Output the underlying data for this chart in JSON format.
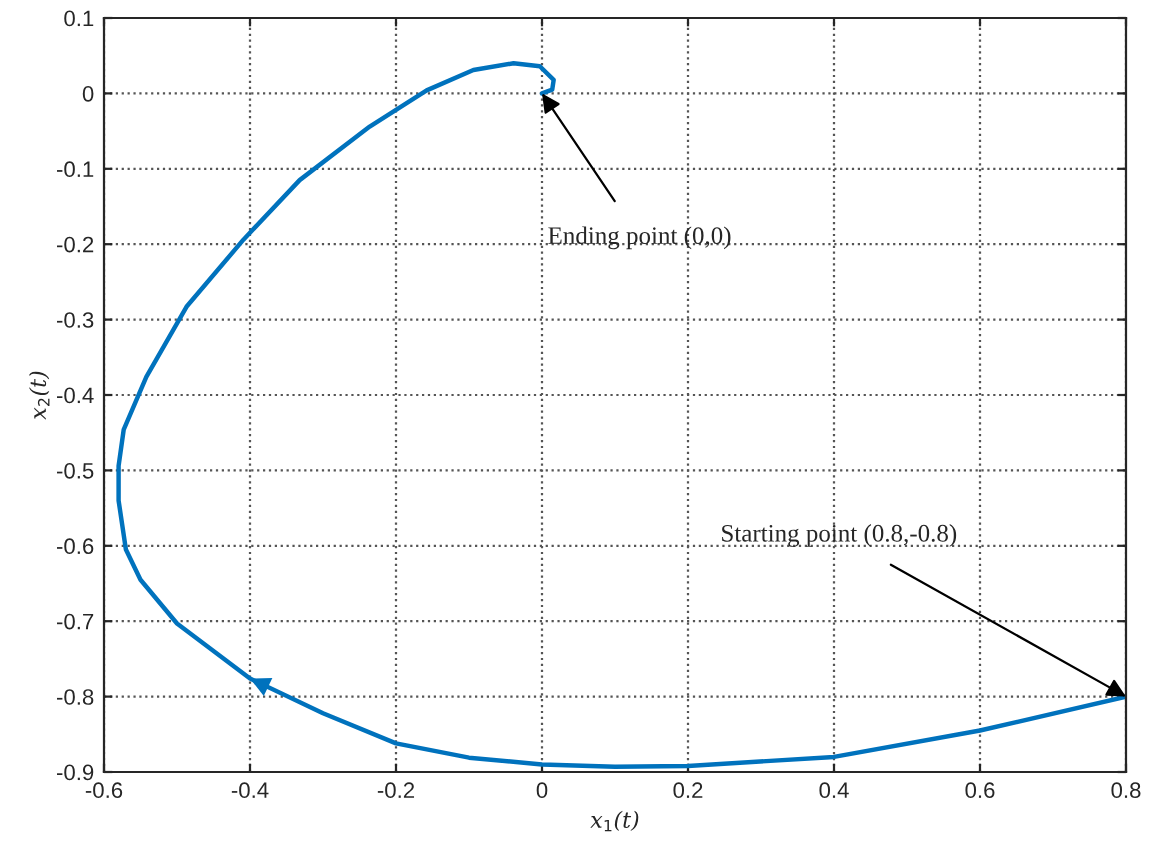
{
  "chart_data": {
    "type": "line",
    "xlabel": "x$_{1}$(t)",
    "ylabel": "x$_{2}$(t)",
    "series": [
      {
        "color": "#0072bd",
        "x": [
          0.8,
          0.6,
          0.4,
          0.2,
          0.1,
          0.0,
          -0.1,
          -0.2,
          -0.3,
          -0.4,
          -0.5,
          -0.55,
          -0.57,
          -0.58,
          -0.58,
          -0.573,
          -0.542,
          -0.487,
          -0.409,
          -0.332,
          -0.236,
          -0.158,
          -0.094,
          -0.039,
          -0.003,
          0.016,
          0.014,
          0.0
        ],
        "values": [
          -0.8,
          -0.845,
          -0.88,
          -0.892,
          -0.893,
          -0.89,
          -0.881,
          -0.862,
          -0.822,
          -0.776,
          -0.703,
          -0.645,
          -0.605,
          -0.54,
          -0.494,
          -0.446,
          -0.376,
          -0.283,
          -0.194,
          -0.115,
          -0.044,
          0.004,
          0.031,
          0.04,
          0.036,
          0.018,
          0.005,
          0.0
        ]
      }
    ],
    "annotations": [
      {
        "text": "Ending point (0,0)",
        "x": 0,
        "y": 0
      },
      {
        "text": "Starting point (0.8,-0.8)",
        "x": 0.8,
        "y": -0.8
      }
    ],
    "xlim": [
      -0.6,
      0.8
    ],
    "xticks": [
      -0.6,
      -0.4,
      -0.2,
      0,
      0.2,
      0.4,
      0.6,
      0.8
    ],
    "ylim": [
      -0.9,
      0.1
    ],
    "yticks": [
      -0.9,
      -0.8,
      -0.7,
      -0.6,
      -0.5,
      -0.4,
      -0.3,
      -0.2,
      -0.1,
      0,
      0.1
    ],
    "grid": true,
    "line_style": "solid"
  }
}
